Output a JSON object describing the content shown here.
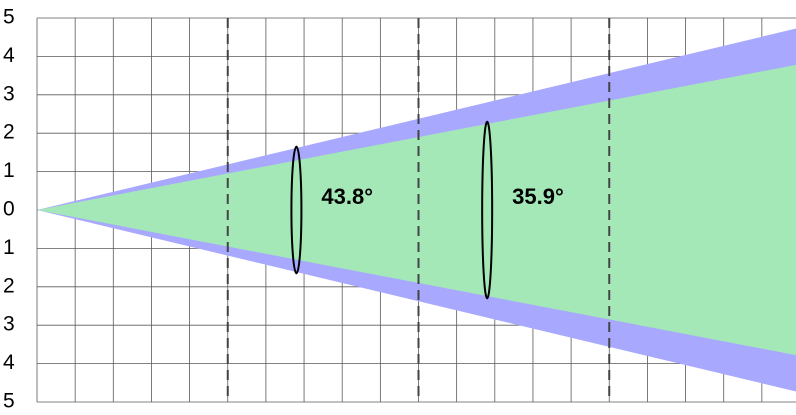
{
  "figure": {
    "y_tick_labels": [
      "5",
      "4",
      "3",
      "2",
      "1",
      "0",
      "1",
      "2",
      "3",
      "4",
      "5"
    ],
    "y_range": [
      -5,
      5
    ],
    "x_range": [
      0,
      20
    ],
    "grid": true,
    "section_dividers_x": [
      5,
      10,
      15
    ],
    "outer_cone": {
      "color": "#a8a8ff",
      "half_width_at_x20": 4.75
    },
    "inner_cone": {
      "color": "#a4e8b8",
      "half_width_at_x20": 3.8
    },
    "angle_annotations": [
      {
        "label": "43.8°",
        "x": 6.8,
        "half_height": 1.65
      },
      {
        "label": "35.9°",
        "x": 11.8,
        "half_height": 2.3
      }
    ]
  }
}
